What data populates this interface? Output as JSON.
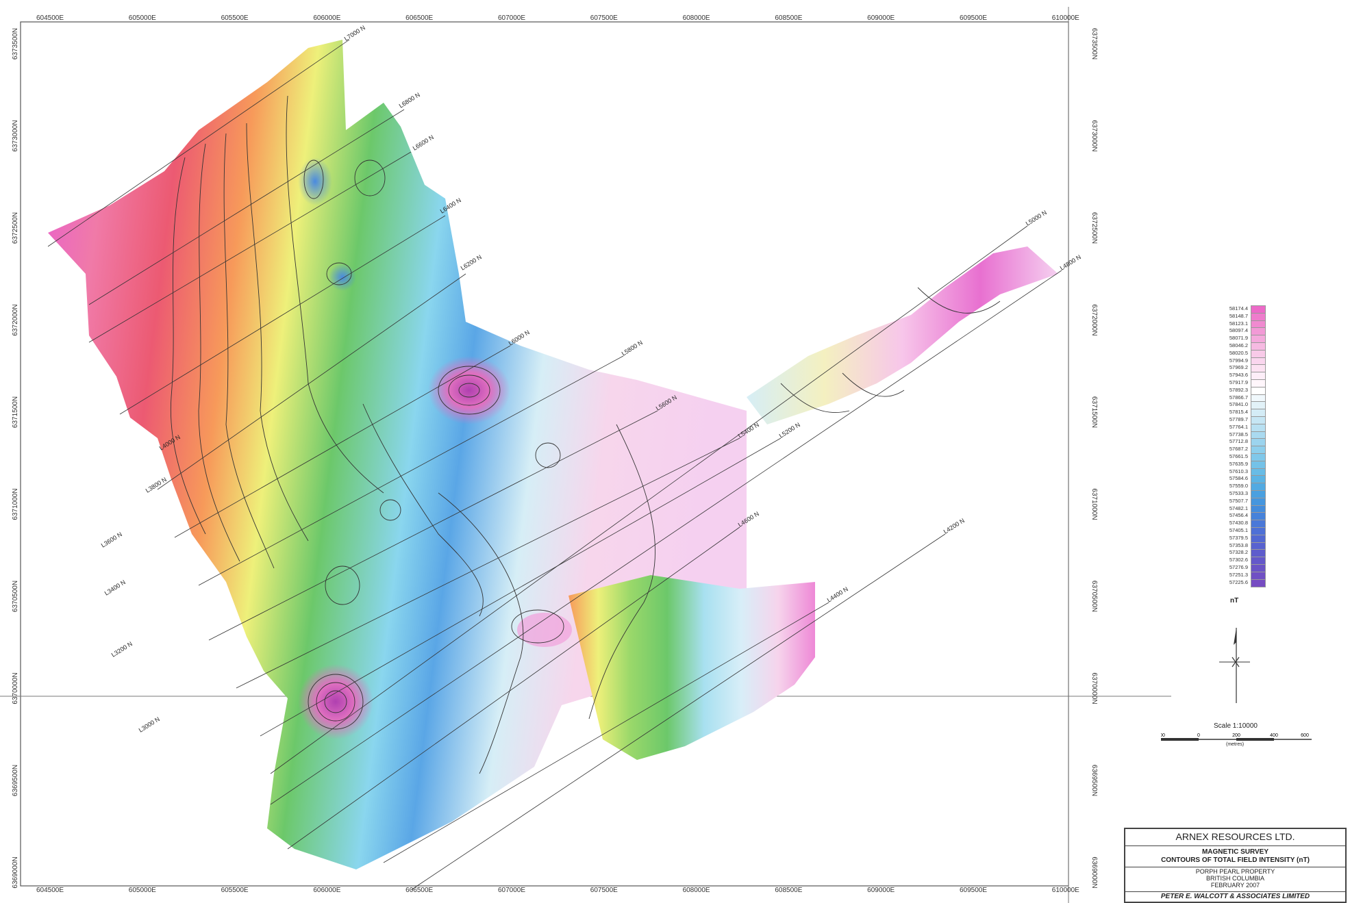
{
  "map": {
    "easting_labels": [
      "604500E",
      "605000E",
      "605500E",
      "606000E",
      "606500E",
      "607000E",
      "607500E",
      "608000E",
      "608500E",
      "609000E",
      "609500E",
      "610000E"
    ],
    "northing_labels": [
      "6373500N",
      "6373000N",
      "6372500N",
      "6372000N",
      "6371500N",
      "6371000N",
      "6370500N",
      "6370000N",
      "6369500N",
      "6369000N"
    ],
    "line_labels": [
      "L7000 N",
      "L6800 N",
      "L6600 N",
      "L6400 N",
      "L6200 N",
      "L6000 N",
      "L5800 N",
      "L5600 N",
      "L5400 N",
      "L5200 N",
      "L5000 N",
      "L4800 N",
      "L4600 N",
      "L4400 N",
      "L4200 N",
      "L4000 N",
      "L3800 N",
      "L3600 N",
      "L3400 N",
      "L3200 N",
      "L3000 N"
    ],
    "colors": {
      "high": "#e060c0",
      "red": "#ec5a72",
      "orange": "#f79a5a",
      "yellow": "#eef07a",
      "green": "#6cc86a",
      "cyan": "#8ad6ee",
      "blue": "#5aa6e6",
      "low": "#6a6ad6"
    }
  },
  "legend": {
    "values": [
      "58174.4",
      "58148.7",
      "58123.1",
      "58097.4",
      "58071.9",
      "58046.2",
      "58020.5",
      "57994.9",
      "57969.2",
      "57943.6",
      "57917.9",
      "57892.3",
      "57866.7",
      "57841.0",
      "57815.4",
      "57789.7",
      "57764.1",
      "57738.5",
      "57712.8",
      "57687.2",
      "57661.5",
      "57635.9",
      "57610.3",
      "57584.6",
      "57559.0",
      "57533.3",
      "57507.7",
      "57482.1",
      "57456.4",
      "57430.8",
      "57405.1",
      "57379.5",
      "57353.8",
      "57328.2",
      "57302.6",
      "57276.9",
      "57251.3",
      "57225.6"
    ],
    "unit": "nT"
  },
  "scale": {
    "title": "Scale 1:10000",
    "ticks": [
      "200",
      "0",
      "200",
      "400",
      "600"
    ],
    "unit": "(metres)"
  },
  "title_block": {
    "company": "ARNEX RESOURCES LTD.",
    "survey_type": "MAGNETIC SURVEY",
    "survey_sub": "CONTOURS OF TOTAL FIELD INTENSITY (nT)",
    "property": "PORPH PEARL PROPERTY",
    "province": "BRITISH COLUMBIA",
    "date": "FEBRUARY 2007",
    "contractor": "PETER E. WALCOTT & ASSOCIATES LIMITED"
  }
}
